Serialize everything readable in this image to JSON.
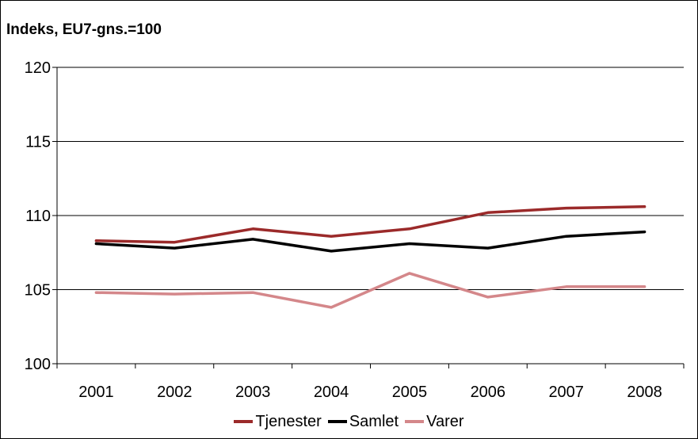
{
  "chart_data": {
    "type": "line",
    "title": "Indeks, EU7-gns.=100",
    "categories": [
      "2001",
      "2002",
      "2003",
      "2004",
      "2005",
      "2006",
      "2007",
      "2008"
    ],
    "ylim": [
      100,
      120
    ],
    "yticks": [
      100,
      105,
      110,
      115,
      120
    ],
    "grid": true,
    "legend_position": "bottom",
    "series": [
      {
        "name": "Tjenester",
        "color": "#9b2a2a",
        "values": [
          108.3,
          108.2,
          109.1,
          108.6,
          109.1,
          110.2,
          110.5,
          110.6
        ]
      },
      {
        "name": "Samlet",
        "color": "#000000",
        "values": [
          108.1,
          107.8,
          108.4,
          107.6,
          108.1,
          107.8,
          108.6,
          108.9
        ]
      },
      {
        "name": "Varer",
        "color": "#d4878a",
        "values": [
          104.8,
          104.7,
          104.8,
          103.8,
          106.1,
          104.5,
          105.2,
          105.2
        ]
      }
    ]
  }
}
